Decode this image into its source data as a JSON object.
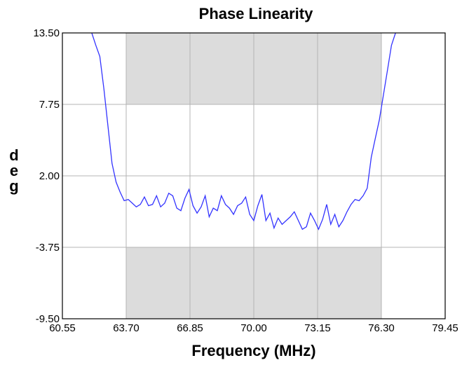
{
  "chart_data": {
    "type": "line",
    "title": "Phase Linearity",
    "xlabel": "Frequency (MHz)",
    "ylabel": "deg",
    "xlim": [
      60.55,
      79.45
    ],
    "ylim": [
      -9.5,
      13.5
    ],
    "x_ticks": [
      "60.55",
      "63.70",
      "66.85",
      "70.00",
      "73.15",
      "76.30",
      "79.45"
    ],
    "y_ticks": [
      "13.50",
      "7.75",
      "2.00",
      "-3.75",
      "-9.50"
    ],
    "grid": true,
    "shaded_band": {
      "x_range": [
        63.7,
        76.3
      ],
      "clear_y_range": [
        -3.75,
        7.75
      ],
      "color": "#dcdcdc"
    },
    "colors": {
      "line": "#3333ff",
      "grid": "#b4b4b4",
      "axes": "#000000"
    },
    "series": [
      {
        "x": [
          62.0,
          62.2,
          62.4,
          62.6,
          62.8,
          63.0,
          63.2,
          63.4,
          63.6,
          63.8,
          64.0,
          64.2,
          64.4,
          64.6,
          64.8,
          65.0,
          65.2,
          65.4,
          65.6,
          65.8,
          66.0,
          66.2,
          66.4,
          66.6,
          66.8,
          67.0,
          67.2,
          67.4,
          67.6,
          67.8,
          68.0,
          68.2,
          68.4,
          68.6,
          68.8,
          69.0,
          69.2,
          69.4,
          69.6,
          69.8,
          70.0,
          70.2,
          70.4,
          70.6,
          70.8,
          71.0,
          71.2,
          71.4,
          71.6,
          71.8,
          72.0,
          72.2,
          72.4,
          72.6,
          72.8,
          73.0,
          73.2,
          73.4,
          73.6,
          73.8,
          74.0,
          74.2,
          74.4,
          74.6,
          74.8,
          75.0,
          75.2,
          75.4,
          75.6,
          75.8,
          76.0,
          76.2,
          76.4,
          76.6,
          76.8,
          77.0,
          77.2,
          77.4
        ],
        "y": [
          13.5,
          12.5,
          11.6,
          9.0,
          6.0,
          3.0,
          1.5,
          0.7,
          0.0,
          0.1,
          -0.2,
          -0.5,
          -0.3,
          0.3,
          -0.4,
          -0.3,
          0.4,
          -0.5,
          -0.2,
          0.6,
          0.4,
          -0.6,
          -0.8,
          0.2,
          0.9,
          -0.4,
          -1.0,
          -0.5,
          0.4,
          -1.3,
          -0.6,
          -0.8,
          0.4,
          -0.3,
          -0.6,
          -1.1,
          -0.4,
          -0.2,
          0.3,
          -1.1,
          -1.6,
          -0.4,
          0.5,
          -1.6,
          -1.0,
          -2.2,
          -1.4,
          -1.9,
          -1.6,
          -1.3,
          -0.9,
          -1.6,
          -2.3,
          -2.1,
          -1.0,
          -1.6,
          -2.3,
          -1.5,
          -0.3,
          -1.9,
          -1.1,
          -2.1,
          -1.6,
          -0.9,
          -0.3,
          0.1,
          0.0,
          0.4,
          1.0,
          3.5,
          5.0,
          6.5,
          8.5,
          10.5,
          12.5,
          13.5,
          14.5,
          15.5
        ]
      }
    ]
  }
}
